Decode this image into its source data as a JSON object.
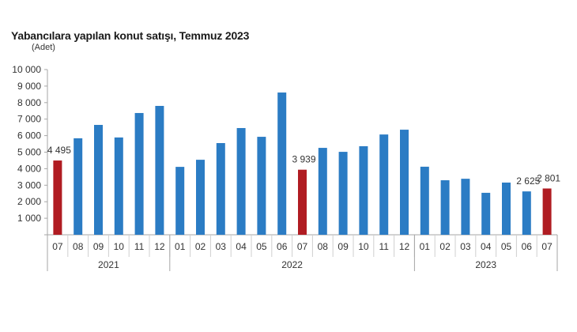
{
  "chart_data": {
    "type": "bar",
    "title": "Yabancılara yapılan konut satışı, Temmuz 2023",
    "unit": "(Adet)",
    "xlabel": "",
    "ylabel": "",
    "ylim": [
      0,
      10000
    ],
    "yticks": [
      1000,
      2000,
      3000,
      4000,
      5000,
      6000,
      7000,
      8000,
      9000,
      10000
    ],
    "ytick_labels": [
      "1 000",
      "2 000",
      "3 000",
      "4 000",
      "5 000",
      "6 000",
      "7 000",
      "8 000",
      "9 000",
      "10 000"
    ],
    "grid": false,
    "legend": null,
    "categories": [
      "07",
      "08",
      "09",
      "10",
      "11",
      "12",
      "01",
      "02",
      "03",
      "04",
      "05",
      "06",
      "07",
      "08",
      "09",
      "10",
      "11",
      "12",
      "01",
      "02",
      "03",
      "04",
      "05",
      "06",
      "07"
    ],
    "years": [
      {
        "label": "2021",
        "start": 0,
        "count": 6
      },
      {
        "label": "2022",
        "start": 6,
        "count": 12
      },
      {
        "label": "2023",
        "start": 18,
        "count": 7
      }
    ],
    "values": [
      4495,
      5840,
      6650,
      5890,
      7370,
      7800,
      4110,
      4540,
      5550,
      6460,
      5930,
      8610,
      3939,
      5260,
      5020,
      5360,
      6070,
      6360,
      4120,
      3300,
      3390,
      2540,
      3160,
      2625,
      2801
    ],
    "highlight_indices": [
      0,
      12,
      24
    ],
    "data_labels": [
      {
        "index": 0,
        "text": "4 495"
      },
      {
        "index": 12,
        "text": "3 939"
      },
      {
        "index": 23,
        "text": "2 625"
      },
      {
        "index": 24,
        "text": "2 801"
      }
    ],
    "colors": {
      "bar": "#2b7cc4",
      "highlight": "#b01c22",
      "axis": "#a6a6a6"
    }
  }
}
